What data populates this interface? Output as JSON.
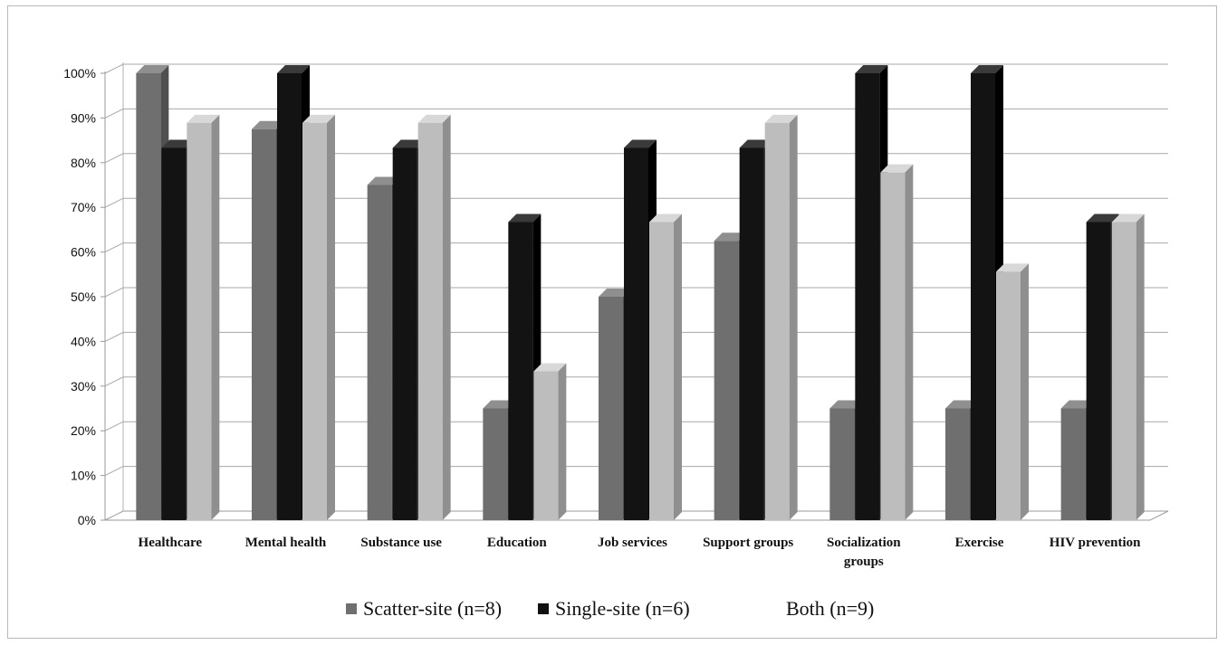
{
  "chart_data": {
    "type": "bar",
    "categories": [
      "Healthcare",
      "Mental health",
      "Substance use",
      "Education",
      "Job services",
      "Support groups",
      "Socialization groups",
      "Exercise",
      "HIV prevention"
    ],
    "series": [
      {
        "name": "Scatter-site (n=8)",
        "values": [
          100,
          87.5,
          75,
          25,
          50,
          62.5,
          25,
          25,
          25
        ]
      },
      {
        "name": "Single-site (n=6)",
        "values": [
          83.3,
          100,
          83.3,
          66.7,
          83.3,
          83.3,
          100,
          100,
          66.7
        ]
      },
      {
        "name": "Both (n=9)",
        "values": [
          88.9,
          88.9,
          88.9,
          33.3,
          66.7,
          88.9,
          77.8,
          55.6,
          66.7
        ]
      }
    ],
    "ylim": [
      0,
      100
    ],
    "yticks": [
      "0%",
      "10%",
      "20%",
      "30%",
      "40%",
      "50%",
      "60%",
      "70%",
      "80%",
      "90%",
      "100%"
    ],
    "grid": true,
    "legend": "bottom",
    "colors": {
      "scatter_front": "#6f6f6f",
      "scatter_side": "#505050",
      "scatter_top": "#8f8f8f",
      "single_front": "#131313",
      "single_side": "#000000",
      "single_top": "#3a3a3a",
      "both_front": "#bdbdbd",
      "both_side": "#8f8f8f",
      "both_top": "#d8d8d8"
    }
  },
  "legend": {
    "scatter": "Scatter-site (n=8)",
    "single": "Single-site (n=6)",
    "both": "Both (n=9)"
  }
}
